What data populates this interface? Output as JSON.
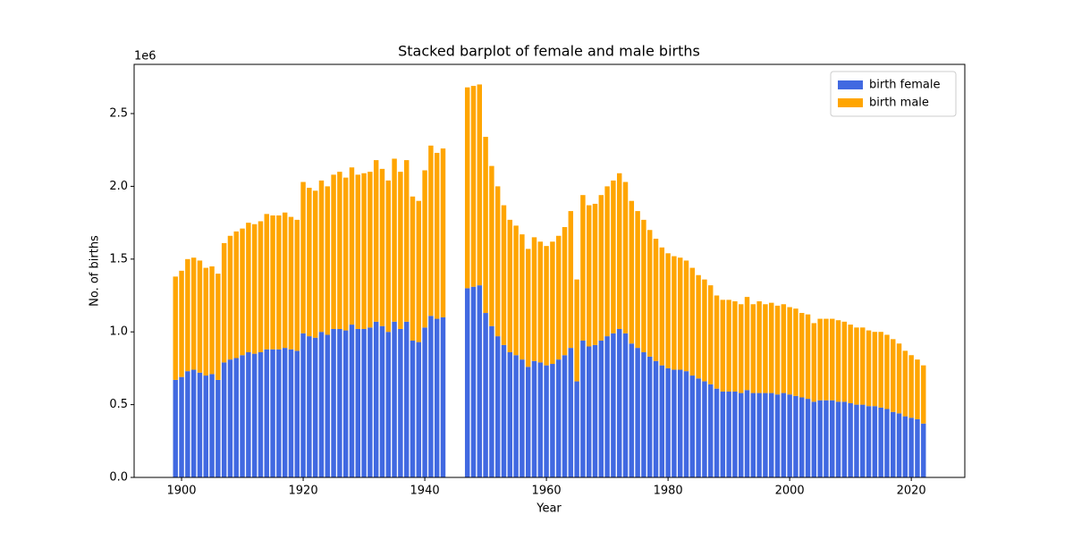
{
  "chart_data": {
    "type": "stacked_bar",
    "title": "Stacked barplot of female and male births",
    "xlabel": "Year",
    "ylabel": "No. of births",
    "y_offset_label": "1e6",
    "x": [
      1899,
      1900,
      1901,
      1902,
      1903,
      1904,
      1905,
      1906,
      1907,
      1908,
      1909,
      1910,
      1911,
      1912,
      1913,
      1914,
      1915,
      1916,
      1917,
      1918,
      1919,
      1920,
      1921,
      1922,
      1923,
      1924,
      1925,
      1926,
      1927,
      1928,
      1929,
      1930,
      1931,
      1932,
      1933,
      1934,
      1935,
      1936,
      1937,
      1938,
      1939,
      1940,
      1941,
      1942,
      1943,
      1947,
      1948,
      1949,
      1950,
      1951,
      1952,
      1953,
      1954,
      1955,
      1956,
      1957,
      1958,
      1959,
      1960,
      1961,
      1962,
      1963,
      1964,
      1965,
      1966,
      1967,
      1968,
      1969,
      1970,
      1971,
      1972,
      1973,
      1974,
      1975,
      1976,
      1977,
      1978,
      1979,
      1980,
      1981,
      1982,
      1983,
      1984,
      1985,
      1986,
      1987,
      1988,
      1989,
      1990,
      1991,
      1992,
      1993,
      1994,
      1995,
      1996,
      1997,
      1998,
      1999,
      2000,
      2001,
      2002,
      2003,
      2004,
      2005,
      2006,
      2007,
      2008,
      2009,
      2010,
      2011,
      2012,
      2013,
      2014,
      2015,
      2016,
      2017,
      2018,
      2019,
      2020,
      2021,
      2022
    ],
    "series": [
      {
        "name": "birth female",
        "color": "#4169e1",
        "values": [
          0.67,
          0.69,
          0.73,
          0.74,
          0.72,
          0.7,
          0.71,
          0.67,
          0.79,
          0.81,
          0.82,
          0.84,
          0.86,
          0.85,
          0.86,
          0.88,
          0.88,
          0.88,
          0.89,
          0.88,
          0.87,
          0.99,
          0.97,
          0.96,
          1.0,
          0.98,
          1.02,
          1.02,
          1.01,
          1.05,
          1.02,
          1.02,
          1.03,
          1.07,
          1.04,
          1.0,
          1.07,
          1.02,
          1.07,
          0.94,
          0.93,
          1.03,
          1.11,
          1.09,
          1.1,
          1.3,
          1.31,
          1.32,
          1.13,
          1.04,
          0.97,
          0.91,
          0.86,
          0.84,
          0.81,
          0.76,
          0.8,
          0.79,
          0.77,
          0.78,
          0.81,
          0.84,
          0.89,
          0.66,
          0.94,
          0.9,
          0.91,
          0.94,
          0.97,
          0.99,
          1.02,
          0.99,
          0.92,
          0.89,
          0.86,
          0.83,
          0.8,
          0.77,
          0.75,
          0.74,
          0.74,
          0.73,
          0.7,
          0.68,
          0.66,
          0.64,
          0.61,
          0.59,
          0.59,
          0.59,
          0.58,
          0.6,
          0.58,
          0.58,
          0.58,
          0.58,
          0.57,
          0.58,
          0.57,
          0.56,
          0.55,
          0.54,
          0.52,
          0.53,
          0.53,
          0.53,
          0.52,
          0.52,
          0.51,
          0.5,
          0.5,
          0.49,
          0.49,
          0.48,
          0.47,
          0.45,
          0.44,
          0.42,
          0.41,
          0.4,
          0.37
        ]
      },
      {
        "name": "birth male",
        "color": "#ffa500",
        "values": [
          0.71,
          0.73,
          0.77,
          0.77,
          0.77,
          0.74,
          0.74,
          0.73,
          0.82,
          0.85,
          0.87,
          0.87,
          0.89,
          0.89,
          0.9,
          0.93,
          0.92,
          0.92,
          0.93,
          0.91,
          0.9,
          1.04,
          1.02,
          1.01,
          1.04,
          1.02,
          1.06,
          1.08,
          1.05,
          1.08,
          1.06,
          1.07,
          1.07,
          1.11,
          1.08,
          1.04,
          1.12,
          1.08,
          1.11,
          0.99,
          0.97,
          1.08,
          1.17,
          1.14,
          1.16,
          1.38,
          1.38,
          1.38,
          1.21,
          1.1,
          1.03,
          0.96,
          0.91,
          0.89,
          0.86,
          0.81,
          0.85,
          0.83,
          0.82,
          0.84,
          0.85,
          0.88,
          0.94,
          0.7,
          1.0,
          0.97,
          0.97,
          1.0,
          1.03,
          1.05,
          1.07,
          1.04,
          0.98,
          0.94,
          0.91,
          0.87,
          0.84,
          0.81,
          0.79,
          0.78,
          0.77,
          0.76,
          0.74,
          0.71,
          0.7,
          0.68,
          0.64,
          0.63,
          0.63,
          0.62,
          0.61,
          0.64,
          0.61,
          0.63,
          0.61,
          0.62,
          0.61,
          0.61,
          0.6,
          0.6,
          0.58,
          0.58,
          0.54,
          0.56,
          0.56,
          0.56,
          0.56,
          0.55,
          0.54,
          0.53,
          0.53,
          0.52,
          0.51,
          0.52,
          0.51,
          0.5,
          0.48,
          0.45,
          0.43,
          0.41,
          0.4
        ]
      }
    ],
    "xlim": [
      1892.2,
      2028.8
    ],
    "xticks": [
      1900,
      1920,
      1940,
      1960,
      1980,
      2000,
      2020
    ],
    "ylim": [
      0,
      2.838
    ],
    "yticks": [
      {
        "value": 0,
        "label": "0.0"
      },
      0.5,
      {
        "value": 1,
        "label": "1.0"
      },
      1.5,
      {
        "value": 2,
        "label": "2.0"
      },
      2.5
    ],
    "legend": "upper right",
    "grid": false
  }
}
